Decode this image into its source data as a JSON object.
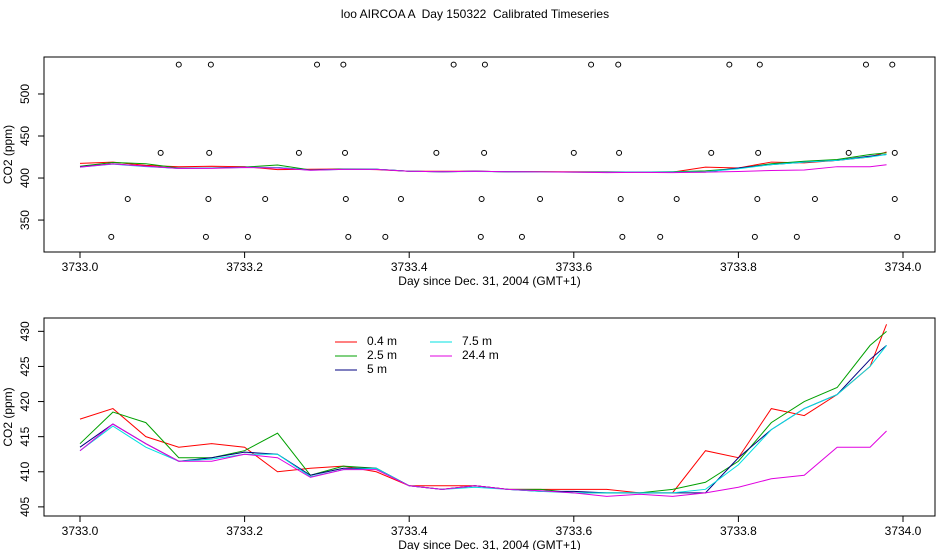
{
  "title": "loo AIRCOA A  Day 150322  Calibrated Timeseries",
  "chart_data": [
    {
      "type": "line",
      "x_label": "Day since Dec. 31, 2004 (GMT+1)",
      "y_label": "CO2 (ppm)",
      "xlim": [
        3733,
        3734
      ],
      "ylim": [
        312,
        544
      ],
      "xticks": [
        {
          "value": 3733,
          "label": "3733.0"
        },
        3733.2,
        3733.4,
        3733.6,
        3733.8,
        {
          "value": 3734,
          "label": "3734.0"
        }
      ],
      "yticks": [
        350,
        400,
        450,
        500
      ],
      "x": [
        3733.0,
        3733.04,
        3733.08,
        3733.12,
        3733.16,
        3733.2,
        3733.24,
        3733.28,
        3733.32,
        3733.36,
        3733.4,
        3733.44,
        3733.48,
        3733.52,
        3733.56,
        3733.6,
        3733.64,
        3733.68,
        3733.72,
        3733.76,
        3733.8,
        3733.84,
        3733.88,
        3733.92,
        3733.96,
        3733.98
      ],
      "series": [
        {
          "color": "#ff0000",
          "values": [
            417.5,
            419,
            415,
            413.5,
            414,
            413.5,
            410,
            410.5,
            410.8,
            410,
            408,
            408,
            408,
            407.5,
            407.5,
            407.5,
            407.5,
            407,
            407,
            413,
            412,
            419,
            418,
            421,
            425,
            431
          ]
        },
        {
          "color": "#00a000",
          "values": [
            414,
            418.5,
            417,
            412,
            412,
            413,
            415.5,
            409.5,
            410.8,
            410.5,
            408,
            407.5,
            408,
            407.5,
            407.5,
            407,
            407,
            407,
            407.5,
            408.5,
            411.5,
            417,
            420,
            422,
            428,
            430
          ]
        },
        {
          "color": "#000080",
          "values": [
            413.5,
            416.8,
            414,
            411.5,
            412,
            412.8,
            412.5,
            409.5,
            410.5,
            410.5,
            408,
            407.5,
            408,
            407.5,
            407.2,
            407.2,
            407,
            407,
            407,
            407,
            412,
            416,
            419,
            421,
            426,
            428
          ]
        },
        {
          "color": "#00e0e0",
          "values": [
            413,
            416.5,
            413.5,
            411.5,
            411.8,
            412.5,
            412.5,
            409.3,
            410.3,
            410.5,
            408,
            407.5,
            407.8,
            407.5,
            407.2,
            407,
            407,
            407,
            407,
            407.5,
            411,
            416,
            419,
            421,
            425,
            428
          ]
        },
        {
          "color": "#e000e0",
          "values": [
            413,
            416.8,
            414,
            411.5,
            411.5,
            412.5,
            412,
            409.2,
            410.3,
            410.3,
            408,
            407.5,
            408,
            407.5,
            407.3,
            407,
            406.5,
            406.8,
            406.5,
            407,
            407.8,
            409,
            409.5,
            413.5,
            413.5,
            415.8
          ]
        }
      ],
      "points": {
        "color": "#000000",
        "x": [
          3733.12,
          3733.159,
          3733.288,
          3733.32,
          3733.454,
          3733.492,
          3733.621,
          3733.654,
          3733.789,
          3733.826,
          3733.955,
          3733.987,
          3733.098,
          3733.157,
          3733.266,
          3733.322,
          3733.433,
          3733.491,
          3733.6,
          3733.655,
          3733.767,
          3733.824,
          3733.934,
          3733.99,
          3733.058,
          3733.156,
          3733.225,
          3733.323,
          3733.39,
          3733.488,
          3733.559,
          3733.657,
          3733.725,
          3733.823,
          3733.893,
          3733.99,
          3733.038,
          3733.153,
          3733.204,
          3733.326,
          3733.371,
          3733.487,
          3733.537,
          3733.659,
          3733.705,
          3733.82,
          3733.871,
          3733.993
        ],
        "values": [
          535,
          535,
          535,
          535,
          535,
          535,
          535,
          535,
          535,
          535,
          535,
          535,
          430,
          430,
          430,
          430,
          430,
          430,
          430,
          430,
          430,
          430,
          430,
          430,
          375,
          375,
          375,
          375,
          375,
          375,
          375,
          375,
          375,
          375,
          375,
          375,
          330,
          330,
          330,
          330,
          330,
          330,
          330,
          330,
          330,
          330,
          330,
          330
        ]
      }
    },
    {
      "type": "line",
      "x_label": "Day since Dec. 31, 2004 (GMT+1)",
      "y_label": "CO2 (ppm)",
      "xlim": [
        3733,
        3734
      ],
      "ylim": [
        403.7,
        431.9
      ],
      "xticks": [
        {
          "value": 3733,
          "label": "3733.0"
        },
        3733.2,
        3733.4,
        3733.6,
        3733.8,
        {
          "value": 3734,
          "label": "3734.0"
        }
      ],
      "yticks": [
        405,
        410,
        415,
        420,
        425,
        430
      ],
      "x": [
        3733.0,
        3733.04,
        3733.08,
        3733.12,
        3733.16,
        3733.2,
        3733.24,
        3733.28,
        3733.32,
        3733.36,
        3733.4,
        3733.44,
        3733.48,
        3733.52,
        3733.56,
        3733.6,
        3733.64,
        3733.68,
        3733.72,
        3733.76,
        3733.8,
        3733.84,
        3733.88,
        3733.92,
        3733.96,
        3733.98
      ],
      "series": [
        {
          "name": "0.4 m",
          "color": "#ff0000",
          "values": [
            417.5,
            419,
            415,
            413.5,
            414,
            413.5,
            410,
            410.5,
            410.8,
            410,
            408,
            408,
            408,
            407.5,
            407.5,
            407.5,
            407.5,
            407,
            407,
            413,
            412,
            419,
            418,
            421,
            425,
            431
          ]
        },
        {
          "name": "2.5 m",
          "color": "#00a000",
          "values": [
            414,
            418.5,
            417,
            412,
            412,
            413,
            415.5,
            409.5,
            410.8,
            410.5,
            408,
            407.5,
            408,
            407.5,
            407.5,
            407,
            407,
            407,
            407.5,
            408.5,
            411.5,
            417,
            420,
            422,
            428,
            430
          ]
        },
        {
          "name": "5 m",
          "color": "#000080",
          "values": [
            413.5,
            416.8,
            414,
            411.5,
            412,
            412.8,
            412.5,
            409.5,
            410.5,
            410.5,
            408,
            407.5,
            408,
            407.5,
            407.2,
            407.2,
            407,
            407,
            407,
            407,
            412,
            416,
            419,
            421,
            426,
            428
          ]
        },
        {
          "name": "7.5 m",
          "color": "#00e0e0",
          "values": [
            413,
            416.5,
            413.5,
            411.5,
            411.8,
            412.5,
            412.5,
            409.3,
            410.3,
            410.5,
            408,
            407.5,
            407.8,
            407.5,
            407.2,
            407,
            407,
            407,
            407,
            407.5,
            411,
            416,
            419,
            421,
            425,
            428
          ]
        },
        {
          "name": "24.4 m",
          "color": "#e000e0",
          "values": [
            413,
            416.8,
            414,
            411.5,
            411.5,
            412.5,
            412,
            409.2,
            410.3,
            410.3,
            408,
            407.5,
            408,
            407.5,
            407.3,
            407,
            406.5,
            406.8,
            406.5,
            407,
            407.8,
            409,
            409.5,
            413.5,
            413.5,
            415.8
          ]
        }
      ]
    }
  ]
}
